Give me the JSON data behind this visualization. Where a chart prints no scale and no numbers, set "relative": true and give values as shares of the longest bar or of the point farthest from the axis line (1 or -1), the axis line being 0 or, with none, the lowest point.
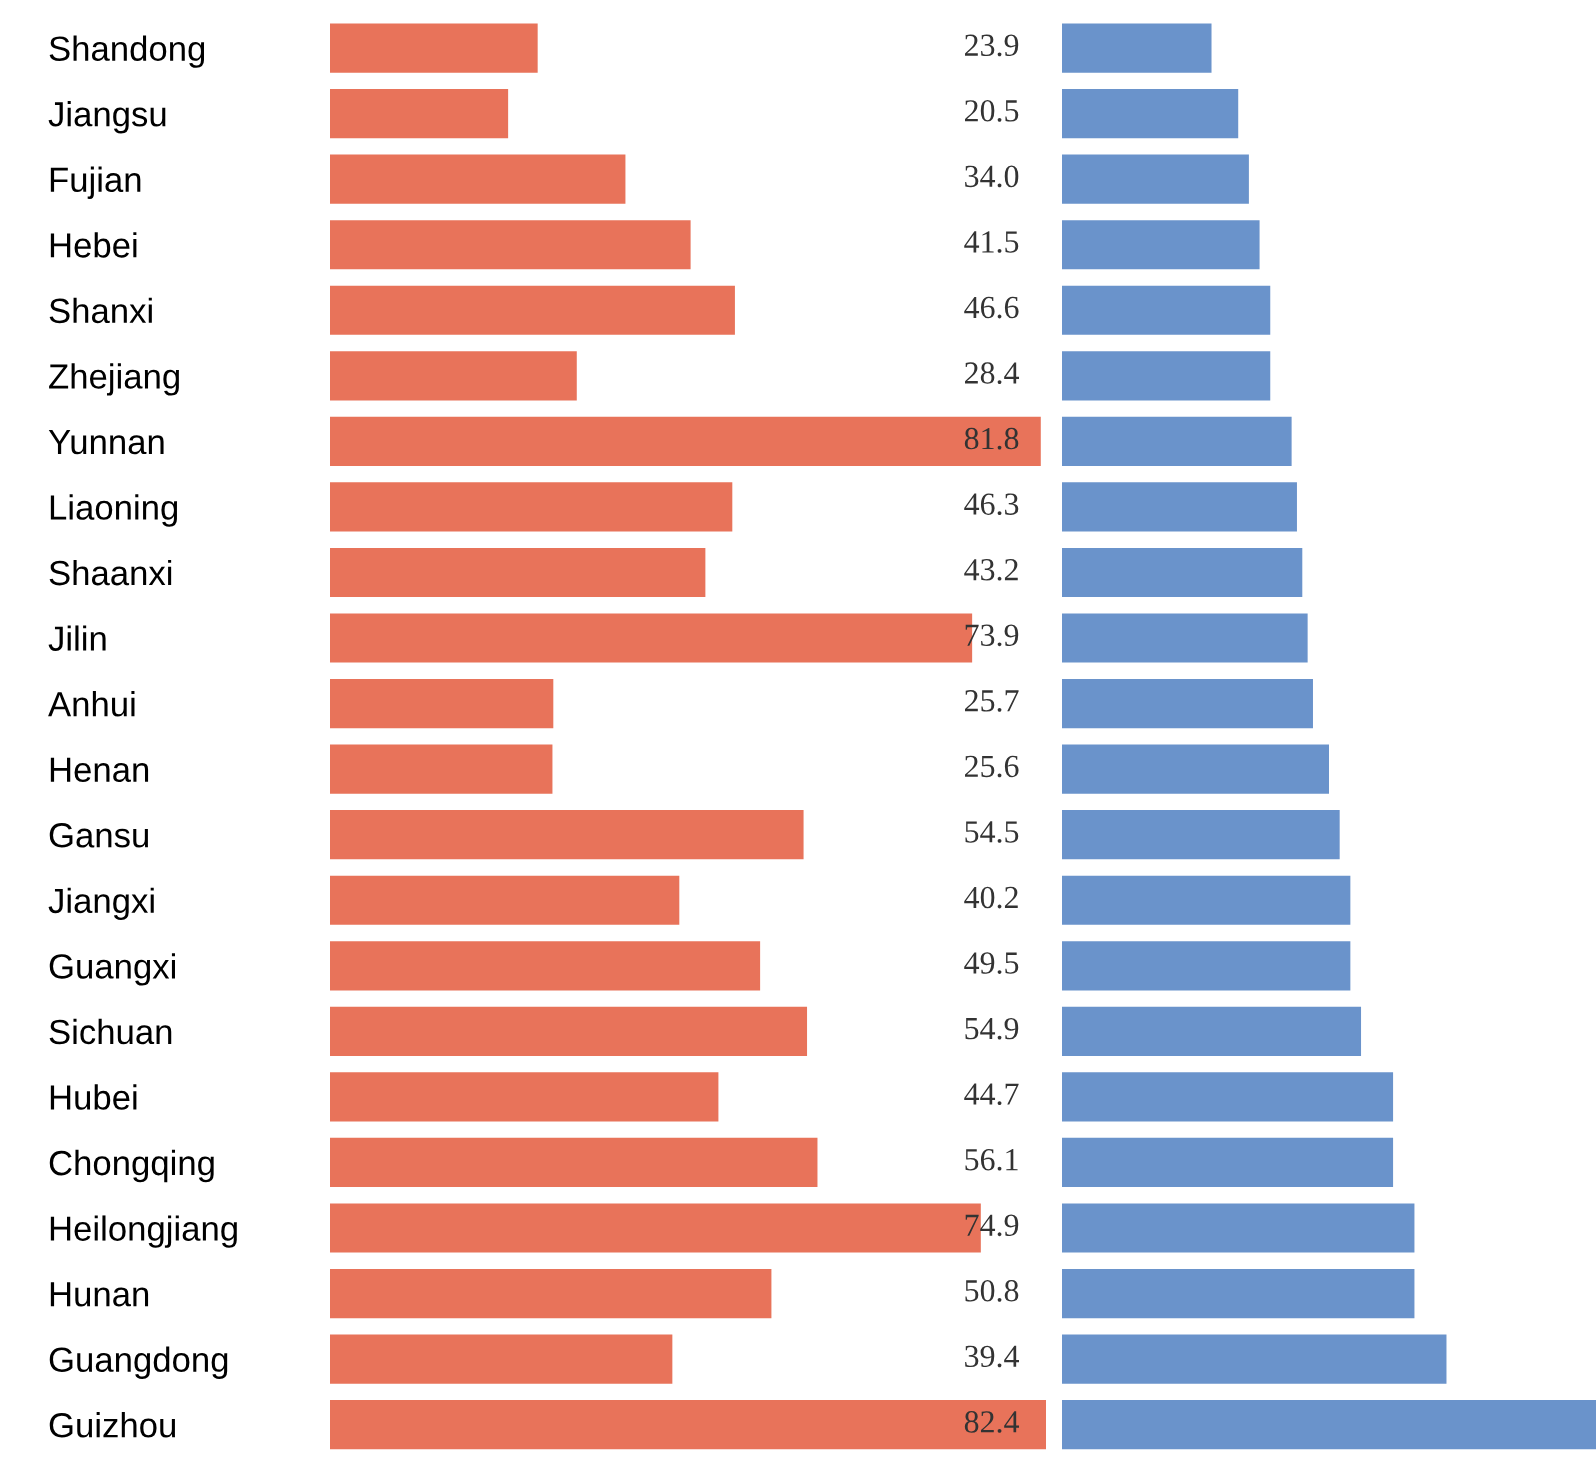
{
  "chart_data": [
    {
      "type": "bar",
      "orientation": "horizontal",
      "categories": [
        "Shandong",
        "Jiangsu",
        "Fujian",
        "Hebei",
        "Shanxi",
        "Zhejiang",
        "Yunnan",
        "Liaoning",
        "Shaanxi",
        "Jilin",
        "Anhui",
        "Henan",
        "Gansu",
        "Jiangxi",
        "Guangxi",
        "Sichuan",
        "Hubei",
        "Chongqing",
        "Heilongjiang",
        "Hunan",
        "Guangdong",
        "Guizhou"
      ],
      "series": [
        {
          "color": "#e8735a",
          "values": [
            23.9,
            20.5,
            34.0,
            41.5,
            46.6,
            28.4,
            81.8,
            46.3,
            43.2,
            73.9,
            25.7,
            25.6,
            54.5,
            40.2,
            49.5,
            54.9,
            44.7,
            56.1,
            74.9,
            50.8,
            39.4,
            82.4
          ],
          "value_labels": [
            "23.9",
            "20.5",
            "34.0",
            "41.5",
            "46.6",
            "28.4",
            "81.8",
            "46.3",
            "43.2",
            "73.9",
            "25.7",
            "25.6",
            "54.5",
            "40.2",
            "49.5",
            "54.9",
            "44.7",
            "56.1",
            "74.9",
            "50.8",
            "39.4",
            "82.4"
          ]
        }
      ],
      "tick_labels": "y",
      "grid": false
    },
    {
      "type": "bar",
      "orientation": "horizontal",
      "relative": true,
      "categories": [
        null,
        null,
        null,
        null,
        null,
        null,
        null,
        null,
        null,
        null,
        null,
        null,
        null,
        null,
        null,
        null,
        null,
        null,
        null,
        null,
        null,
        null
      ],
      "series": [
        {
          "color": "#6a93cb",
          "values": [
            0.28,
            0.33,
            0.35,
            0.37,
            0.39,
            0.39,
            0.43,
            0.44,
            0.45,
            0.46,
            0.47,
            0.5,
            0.52,
            0.54,
            0.54,
            0.56,
            0.62,
            0.62,
            0.66,
            0.66,
            0.72,
            1
          ]
        }
      ],
      "tick_labels": false,
      "grid": false
    }
  ]
}
